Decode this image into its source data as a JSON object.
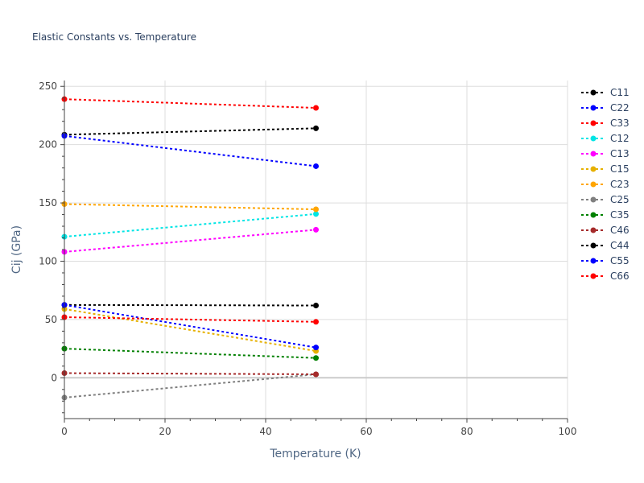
{
  "chart_data": {
    "type": "line",
    "title": "Elastic Constants vs. Temperature",
    "xlabel": "Temperature (K)",
    "ylabel": "Cij (GPa)",
    "xlim": [
      0,
      100
    ],
    "ylim": [
      -35,
      255
    ],
    "xticks": [
      0,
      20,
      40,
      60,
      80,
      100
    ],
    "yticks": [
      0,
      50,
      100,
      150,
      200,
      250
    ],
    "grid": true,
    "legend_position": "right",
    "line_style": "dotted",
    "x": [
      0,
      50
    ],
    "series": [
      {
        "name": "C11",
        "color": "#000000",
        "values": [
          208.5,
          214
        ]
      },
      {
        "name": "C22",
        "color": "#0000ff",
        "values": [
          207.5,
          181.5
        ]
      },
      {
        "name": "C33",
        "color": "#ff0000",
        "values": [
          239,
          231.5
        ]
      },
      {
        "name": "C12",
        "color": "#00e5e5",
        "values": [
          121,
          140.5
        ]
      },
      {
        "name": "C13",
        "color": "#ff00ff",
        "values": [
          108,
          127
        ]
      },
      {
        "name": "C15",
        "color": "#e6b000",
        "values": [
          59,
          23
        ]
      },
      {
        "name": "C23",
        "color": "#ffa500",
        "values": [
          149,
          144.5
        ]
      },
      {
        "name": "C25",
        "color": "#808080",
        "values": [
          -17,
          3
        ]
      },
      {
        "name": "C35",
        "color": "#008000",
        "values": [
          25,
          17
        ]
      },
      {
        "name": "C46",
        "color": "#a52a2a",
        "values": [
          4,
          3
        ]
      },
      {
        "name": "C44",
        "color": "#000000",
        "values": [
          62.5,
          62
        ]
      },
      {
        "name": "C55",
        "color": "#0000ff",
        "values": [
          62.5,
          26
        ]
      },
      {
        "name": "C66",
        "color": "#ff0000",
        "values": [
          52,
          48
        ]
      }
    ]
  }
}
